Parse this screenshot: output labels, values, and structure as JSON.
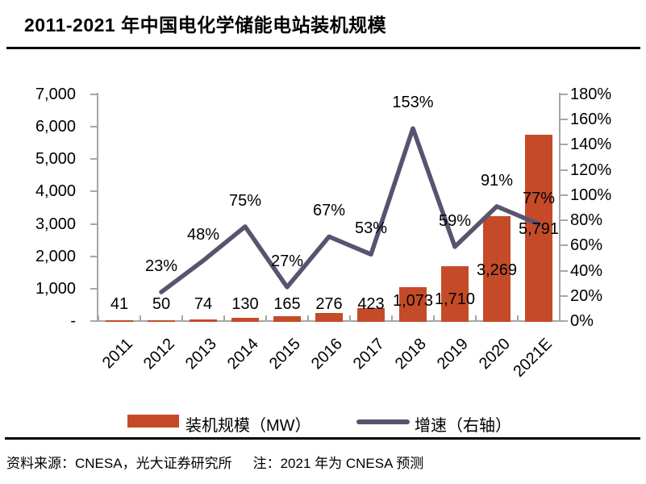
{
  "title": "2011-2021 年中国电化学储能电站装机规模",
  "chart_data": {
    "type": "bar+line combo",
    "categories": [
      "2011",
      "2012",
      "2013",
      "2014",
      "2015",
      "2016",
      "2017",
      "2018",
      "2019",
      "2020",
      "2021E"
    ],
    "series": [
      {
        "name": "装机规模（MW）",
        "type": "bar",
        "axis": "left",
        "values": [
          41,
          50,
          74,
          130,
          165,
          276,
          423,
          1073,
          1710,
          3269,
          5791
        ],
        "labels": [
          "41",
          "50",
          "74",
          "130",
          "165",
          "276",
          "423",
          "1,073",
          "1,710",
          "3,269",
          "5,791"
        ]
      },
      {
        "name": "增速（右轴）",
        "type": "line",
        "axis": "right",
        "values": [
          null,
          23,
          48,
          75,
          27,
          67,
          53,
          153,
          59,
          91,
          77
        ],
        "labels": [
          "",
          "23%",
          "48%",
          "75%",
          "27%",
          "67%",
          "53%",
          "153%",
          "59%",
          "91%",
          "77%"
        ]
      }
    ],
    "left_axis": {
      "min": 0,
      "max": 7000,
      "tick_labels": [
        "7,000",
        "6,000",
        "5,000",
        "4,000",
        "3,000",
        "2,000",
        "1,000",
        "-"
      ]
    },
    "right_axis": {
      "min": "0%",
      "max": "180%",
      "tick_labels": [
        "180%",
        "160%",
        "140%",
        "120%",
        "100%",
        "80%",
        "60%",
        "40%",
        "20%",
        "0%"
      ]
    },
    "grid": "off",
    "legend_position": "bottom",
    "colors": {
      "bar": "#C54B28",
      "line": "#595370"
    }
  },
  "footer": {
    "source": "资料来源：CNESA，光大证券研究所",
    "note": "注：2021 年为 CNESA 预测"
  }
}
